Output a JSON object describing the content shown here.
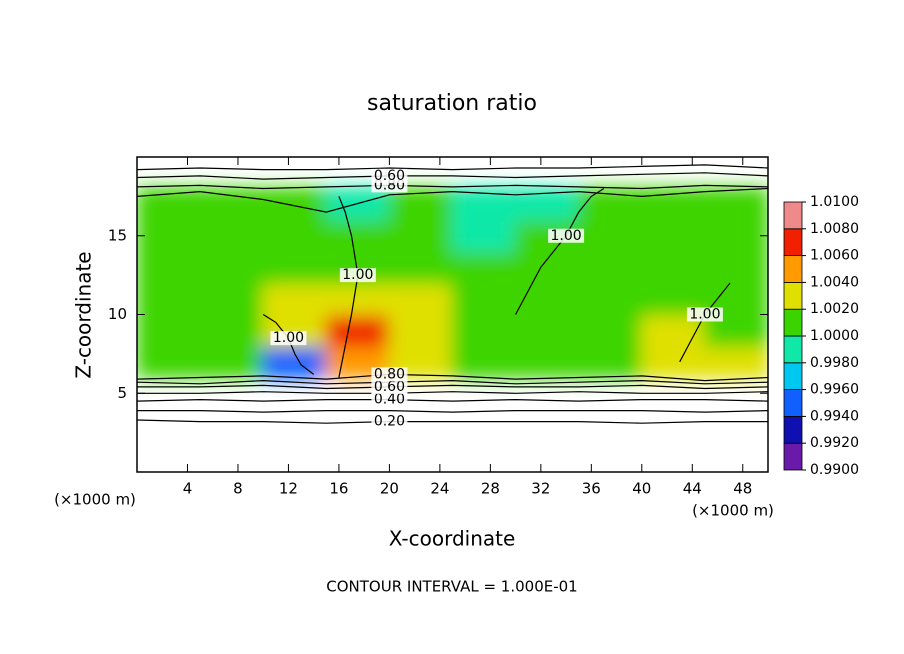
{
  "chart_data": {
    "type": "contour",
    "title": "saturation ratio",
    "xlabel": "X-coordinate",
    "ylabel": "Z-coordinate",
    "x_unit": "(×1000 m)",
    "y_unit": "(×1000 m)",
    "footnote": "CONTOUR INTERVAL = 1.000E-01",
    "xlim": [
      0,
      50
    ],
    "ylim": [
      0,
      20
    ],
    "xticks": [
      4,
      8,
      12,
      16,
      20,
      24,
      28,
      32,
      36,
      40,
      44,
      48
    ],
    "yticks": [
      5,
      10,
      15
    ],
    "field": {
      "x": [
        2.5,
        7.5,
        12.5,
        17.5,
        22.5,
        27.5,
        32.5,
        37.5,
        42.5,
        47.5
      ],
      "z": [
        7,
        9,
        11,
        13,
        15,
        17
      ],
      "values": [
        [
          1.001,
          1.001,
          0.995,
          1.005,
          1.002,
          1.001,
          1.001,
          1.001,
          1.003,
          1.002
        ],
        [
          1.001,
          1.001,
          1.002,
          1.006,
          1.002,
          1.001,
          1.001,
          1.001,
          1.002,
          1.001
        ],
        [
          1.001,
          1.001,
          1.002,
          1.003,
          1.002,
          1.001,
          1.001,
          1.001,
          1.001,
          1.001
        ],
        [
          1.001,
          1.001,
          1.001,
          1.001,
          1.001,
          1.001,
          1.001,
          1.001,
          1.001,
          1.001
        ],
        [
          1.001,
          1.001,
          1.001,
          1.001,
          1.001,
          0.999,
          1.001,
          1.001,
          1.001,
          1.001
        ],
        [
          1.001,
          1.001,
          1.001,
          0.999,
          1.001,
          0.999,
          0.999,
          1.001,
          1.001,
          1.001
        ]
      ]
    },
    "colorbar": {
      "ticks": [
        {
          "value": 0.99,
          "label": "0.9900"
        },
        {
          "value": 0.992,
          "label": "0.9920"
        },
        {
          "value": 0.994,
          "label": "0.9940"
        },
        {
          "value": 0.996,
          "label": "0.9960"
        },
        {
          "value": 0.998,
          "label": "0.9980"
        },
        {
          "value": 1.0,
          "label": "1.0000"
        },
        {
          "value": 1.002,
          "label": "1.0020"
        },
        {
          "value": 1.004,
          "label": "1.0040"
        },
        {
          "value": 1.006,
          "label": "1.0060"
        },
        {
          "value": 1.008,
          "label": "1.0080"
        },
        {
          "value": 1.01,
          "label": "1.0100"
        }
      ],
      "colors": [
        "#6a1aa8",
        "#1010b0",
        "#1060ff",
        "#00c8f0",
        "#10e8a8",
        "#3cd400",
        "#e0e000",
        "#ff9a00",
        "#f02000",
        "#f08a8a"
      ]
    },
    "contours": [
      {
        "level": 0.2,
        "label": "0.20",
        "x": [
          0,
          5,
          10,
          15,
          20,
          25,
          30,
          35,
          40,
          45,
          50
        ],
        "z": [
          3.3,
          3.2,
          3.2,
          3.1,
          3.2,
          3.2,
          3.2,
          3.2,
          3.1,
          3.2,
          3.2
        ]
      },
      {
        "level": 0.3,
        "x": [
          0,
          5,
          10,
          15,
          20,
          25,
          30,
          35,
          40,
          45,
          50
        ],
        "z": [
          3.9,
          3.9,
          3.8,
          3.9,
          3.9,
          3.8,
          3.9,
          3.9,
          3.9,
          3.8,
          3.9
        ]
      },
      {
        "level": 0.4,
        "label": "0.40",
        "x": [
          0,
          5,
          10,
          15,
          20,
          25,
          30,
          35,
          40,
          45,
          50
        ],
        "z": [
          4.5,
          4.6,
          4.5,
          4.6,
          4.6,
          4.5,
          4.6,
          4.5,
          4.6,
          4.6,
          4.5
        ]
      },
      {
        "level": 0.5,
        "x": [
          0,
          5,
          10,
          15,
          20,
          25,
          30,
          35,
          40,
          45,
          50
        ],
        "z": [
          5.0,
          5.0,
          5.1,
          5.0,
          5.0,
          5.1,
          5.0,
          5.1,
          5.0,
          5.0,
          5.1
        ]
      },
      {
        "level": 0.6,
        "label": "0.60",
        "x": [
          0,
          5,
          10,
          15,
          20,
          25,
          30,
          35,
          40,
          45,
          50
        ],
        "z": [
          5.4,
          5.4,
          5.5,
          5.3,
          5.4,
          5.5,
          5.4,
          5.4,
          5.5,
          5.3,
          5.4
        ]
      },
      {
        "level": 0.7,
        "x": [
          0,
          5,
          10,
          15,
          20,
          25,
          30,
          35,
          40,
          45,
          50
        ],
        "z": [
          5.7,
          5.6,
          5.8,
          5.6,
          5.7,
          5.8,
          5.6,
          5.7,
          5.8,
          5.6,
          5.7
        ]
      },
      {
        "level": 0.8,
        "label": "0.80",
        "x": [
          0,
          5,
          10,
          15,
          20,
          25,
          30,
          35,
          40,
          45,
          50
        ],
        "z": [
          5.9,
          6.0,
          6.1,
          5.9,
          6.2,
          6.1,
          5.9,
          6.0,
          6.1,
          5.8,
          6.0
        ]
      },
      {
        "level": 0.8,
        "label": "0.80",
        "x": [
          0,
          5,
          10,
          15,
          20,
          25,
          30,
          35,
          40,
          45,
          50
        ],
        "z": [
          18.1,
          18.2,
          18.0,
          18.1,
          18.2,
          18.1,
          18.2,
          18.1,
          18.0,
          18.2,
          18.1
        ]
      },
      {
        "level": 0.6,
        "label": "0.60",
        "x": [
          0,
          5,
          10,
          15,
          20,
          25,
          30,
          35,
          40,
          45,
          50
        ],
        "z": [
          18.7,
          18.8,
          18.6,
          18.7,
          18.8,
          18.8,
          18.7,
          18.8,
          18.9,
          19.0,
          18.8
        ]
      },
      {
        "level": 0.4,
        "x": [
          0,
          5,
          10,
          15,
          20,
          25,
          30,
          35,
          40,
          45,
          50
        ],
        "z": [
          19.2,
          19.3,
          19.2,
          19.2,
          19.3,
          19.2,
          19.3,
          19.3,
          19.4,
          19.5,
          19.3
        ]
      },
      {
        "level": 1.0,
        "x": [
          0,
          5,
          10,
          15,
          20,
          25,
          30,
          35,
          40,
          45,
          50
        ],
        "z": [
          17.5,
          17.8,
          17.3,
          16.5,
          17.6,
          17.8,
          17.6,
          17.8,
          17.5,
          17.8,
          18
        ]
      },
      {
        "level": 1.0,
        "label": "1.00",
        "x": [
          10,
          11,
          12,
          12.5,
          13,
          14
        ],
        "z": [
          10,
          9.5,
          8.5,
          7.5,
          6.8,
          6.2
        ]
      },
      {
        "level": 1.0,
        "label": "1.00",
        "x": [
          16,
          16.5,
          17,
          17.5,
          17,
          16.5,
          16
        ],
        "z": [
          6,
          8,
          10,
          12.5,
          15,
          16.5,
          17.5
        ]
      },
      {
        "level": 1.0,
        "label": "1.00",
        "x": [
          30,
          32,
          34,
          35,
          36,
          37
        ],
        "z": [
          10,
          13,
          15,
          16.5,
          17.5,
          18
        ]
      },
      {
        "level": 1.0,
        "label": "1.00",
        "x": [
          47,
          46,
          45,
          44,
          43
        ],
        "z": [
          12,
          11,
          10,
          8.5,
          7
        ]
      }
    ]
  }
}
